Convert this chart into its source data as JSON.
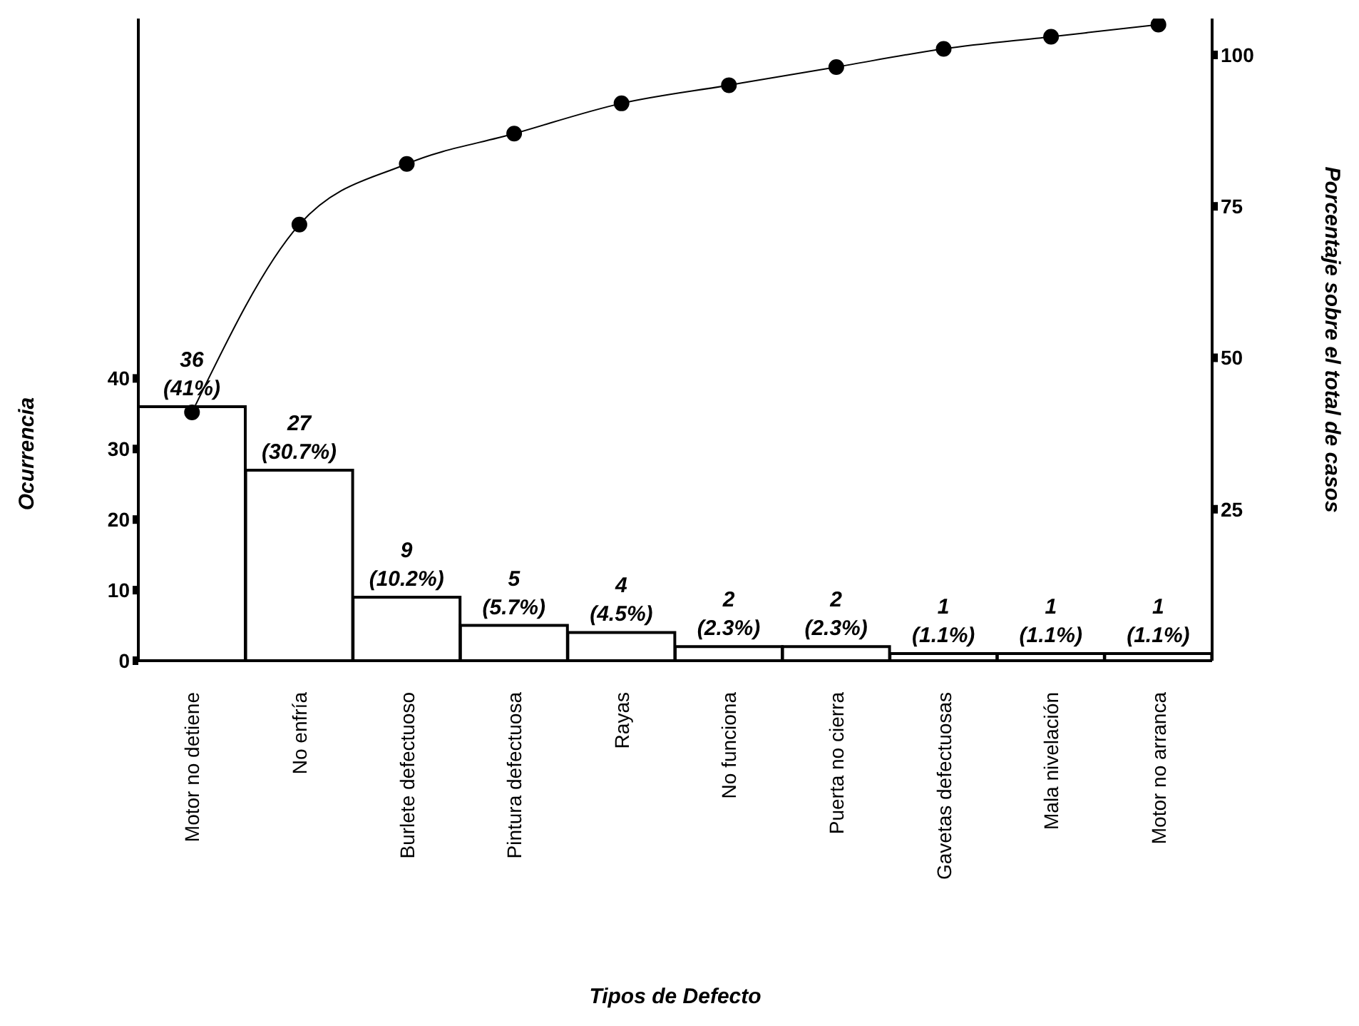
{
  "chart_data": {
    "type": "bar",
    "xlabel": "Tipos de Defecto",
    "ylabel": "Ocurrencia",
    "y2label": "Porcentaje sobre el total de casos",
    "categories": [
      "Motor no detiene",
      "No enfría",
      "Burlete defectuoso",
      "Pintura defectuosa",
      "Rayas",
      "No funciona",
      "Puerta no cierra",
      "Gavetas defectuosas",
      "Mala nivelación",
      "Motor no arranca"
    ],
    "series": [
      {
        "color": "#ffffff",
        "values": [
          36,
          27,
          9,
          5,
          4,
          2,
          2,
          1,
          1,
          1
        ],
        "value_labels": [
          "36\n(41%)",
          "27\n(30.7%)",
          "9\n(10.2%)",
          "5\n(5.7%)",
          "4\n(4.5%)",
          "2\n(2.3%)",
          "2\n(2.3%)",
          "1\n(1.1%)",
          "1\n(1.1%)",
          "1\n(1.1%)"
        ]
      },
      {
        "type": "line",
        "axis": "y2",
        "color": "#000000",
        "values": [
          41,
          72,
          82,
          87,
          92,
          95,
          98,
          101,
          103,
          105
        ]
      }
    ],
    "ylim": [
      0,
      91
    ],
    "yticks": [
      0,
      10,
      20,
      30,
      40
    ],
    "y2lim": [
      0,
      106
    ],
    "y2ticks": [
      25,
      50,
      75,
      100
    ],
    "marker": "circle",
    "line_style": "solid"
  }
}
